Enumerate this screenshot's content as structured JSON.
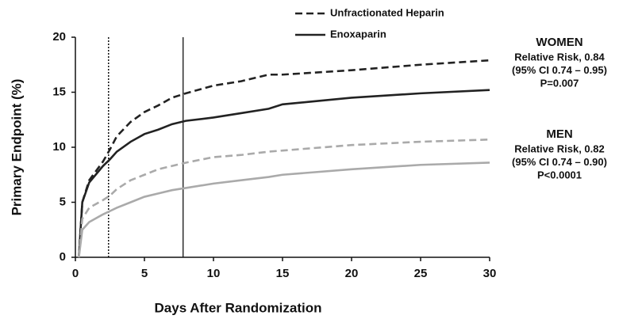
{
  "chart_data": {
    "type": "line",
    "x_label": "Days After Randomization",
    "y_label": "Primary Endpoint (%)",
    "x": [
      0.25,
      0.5,
      1,
      2,
      2.5,
      3,
      4,
      5,
      6,
      7,
      8,
      10,
      12,
      14,
      15,
      20,
      25,
      30
    ],
    "series": [
      {
        "name": "Unfractionated Heparin",
        "color": "#222222",
        "dashed": true,
        "values": [
          0,
          5,
          7,
          8.7,
          9.8,
          11,
          12.3,
          13.2,
          13.8,
          14.5,
          14.9,
          15.6,
          16,
          16.6,
          16.6,
          17,
          17.5,
          17.9
        ]
      },
      {
        "name": "Enoxaparin",
        "color": "#222222",
        "dashed": false,
        "values": [
          0,
          5,
          6.8,
          8.3,
          8.9,
          9.6,
          10.5,
          11.2,
          11.6,
          12.1,
          12.4,
          12.7,
          13.1,
          13.5,
          13.9,
          14.5,
          14.9,
          15.2
        ]
      },
      {
        "name": "Unfractionated Heparin",
        "color": "#aaaaaa",
        "dashed": true,
        "values": [
          0,
          3.5,
          4.5,
          5.2,
          5.6,
          6.2,
          7,
          7.5,
          8,
          8.3,
          8.6,
          9.1,
          9.3,
          9.6,
          9.7,
          10.2,
          10.5,
          10.7
        ]
      },
      {
        "name": "Enoxaparin",
        "color": "#aaaaaa",
        "dashed": false,
        "values": [
          0,
          2.5,
          3.2,
          3.9,
          4.2,
          4.5,
          5,
          5.5,
          5.8,
          6.1,
          6.3,
          6.7,
          7,
          7.3,
          7.5,
          8,
          8.4,
          8.6
        ]
      }
    ],
    "xlim": [
      0,
      30
    ],
    "xticks": [
      0,
      5,
      10,
      15,
      20,
      25,
      30
    ],
    "ylim": [
      0,
      20
    ],
    "yticks": [
      0,
      5,
      10,
      15,
      20
    ],
    "vlines": [
      {
        "x": 2.4,
        "dotted": true
      },
      {
        "x": 7.8,
        "dotted": false
      }
    ],
    "annotations": [
      {
        "group": "WOMEN",
        "lines": [
          "Relative Risk, 0.84",
          "(95% CI 0.74 – 0.95)",
          "P=0.007"
        ]
      },
      {
        "group": "MEN",
        "lines": [
          "Relative Risk, 0.82",
          "(95% CI 0.74 – 0.90)",
          "P<0.0001"
        ]
      }
    ]
  }
}
